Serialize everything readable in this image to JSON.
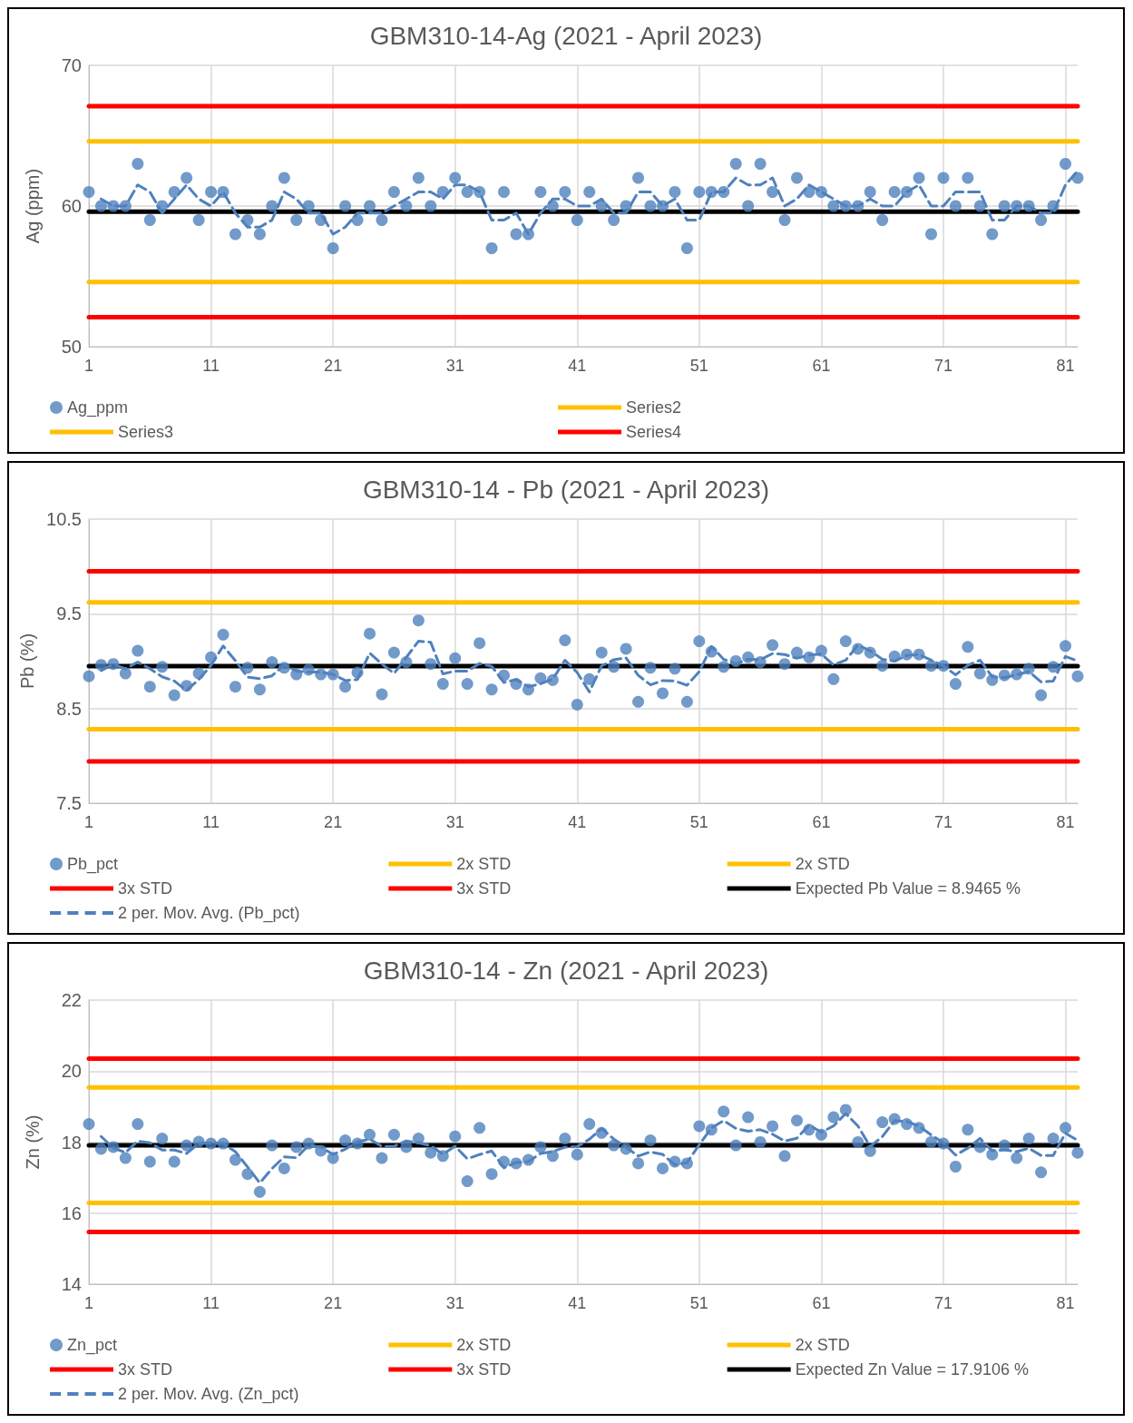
{
  "chart_data": [
    {
      "type": "scatter",
      "title": "GBM310-14-Ag (2021 - April 2023)",
      "ylabel": "Ag (ppm)",
      "xlim": [
        1,
        82
      ],
      "xticks": [
        1,
        11,
        21,
        31,
        41,
        51,
        61,
        71,
        81
      ],
      "ylim": [
        50,
        70
      ],
      "yticks": [
        50,
        60,
        70
      ],
      "grid": true,
      "legend": "bottom",
      "series": [
        {
          "name": "Ag_ppm",
          "color": "#4f81bd",
          "marker": "circle",
          "x": [
            1,
            2,
            3,
            4,
            5,
            6,
            7,
            8,
            9,
            10,
            11,
            12,
            13,
            14,
            15,
            16,
            17,
            18,
            19,
            20,
            21,
            22,
            23,
            24,
            25,
            26,
            27,
            28,
            29,
            30,
            31,
            32,
            33,
            34,
            35,
            36,
            37,
            38,
            39,
            40,
            41,
            42,
            43,
            44,
            45,
            46,
            47,
            48,
            49,
            50,
            51,
            52,
            53,
            54,
            55,
            56,
            57,
            58,
            59,
            60,
            61,
            62,
            63,
            64,
            65,
            66,
            67,
            68,
            69,
            70,
            71,
            72,
            73,
            74,
            75,
            76,
            77,
            78,
            79,
            80,
            81,
            82
          ],
          "values": [
            61,
            60,
            60,
            60,
            63,
            59,
            60,
            61,
            62,
            59,
            61,
            61,
            58,
            59,
            58,
            60,
            62,
            59,
            60,
            59,
            57,
            60,
            59,
            60,
            59,
            61,
            60,
            62,
            60,
            61,
            62,
            61,
            61,
            57,
            61,
            58,
            58,
            61,
            60,
            61,
            59,
            61,
            60,
            59,
            60,
            62,
            60,
            60,
            61,
            57,
            61,
            61,
            61,
            63,
            60,
            63,
            61,
            59,
            62,
            61,
            61,
            60,
            60,
            60,
            61,
            59,
            61,
            61,
            62,
            58,
            62,
            60,
            62,
            60,
            58,
            60,
            60,
            60,
            59,
            60,
            63,
            62
          ]
        },
        {
          "name": "Series2",
          "type": "line",
          "color": "#ffc000",
          "marker": "none",
          "line_style": "solid",
          "x": [
            1,
            82
          ],
          "values": [
            64.6,
            64.6
          ]
        },
        {
          "name": "Series3",
          "type": "line",
          "color": "#ffc000",
          "marker": "none",
          "line_style": "solid",
          "x": [
            1,
            82
          ],
          "values": [
            54.6,
            54.6
          ]
        },
        {
          "name": "Series4",
          "type": "line",
          "color": "#ff0000",
          "marker": "none",
          "line_style": "solid",
          "x": [
            1,
            82
          ],
          "values": [
            67.1,
            67.1
          ]
        },
        {
          "type": "line",
          "color": "#ff0000",
          "marker": "none",
          "line_style": "solid",
          "x": [
            1,
            82
          ],
          "values": [
            52.1,
            52.1
          ]
        },
        {
          "type": "line",
          "color": "#000000",
          "marker": "none",
          "line_style": "solid",
          "x": [
            1,
            82
          ],
          "values": [
            59.6,
            59.6
          ]
        },
        {
          "type": "line",
          "color": "#4f81bd",
          "marker": "none",
          "line_style": "dashed",
          "x": [
            2,
            3,
            4,
            5,
            6,
            7,
            8,
            9,
            10,
            11,
            12,
            13,
            14,
            15,
            16,
            17,
            18,
            19,
            20,
            21,
            22,
            23,
            24,
            25,
            26,
            27,
            28,
            29,
            30,
            31,
            32,
            33,
            34,
            35,
            36,
            37,
            38,
            39,
            40,
            41,
            42,
            43,
            44,
            45,
            46,
            47,
            48,
            49,
            50,
            51,
            52,
            53,
            54,
            55,
            56,
            57,
            58,
            59,
            60,
            61,
            62,
            63,
            64,
            65,
            66,
            67,
            68,
            69,
            70,
            71,
            72,
            73,
            74,
            75,
            76,
            77,
            78,
            79,
            80,
            81,
            82
          ],
          "values": [
            60.5,
            60,
            60,
            61.5,
            61,
            59.5,
            60.5,
            61.5,
            60.5,
            60,
            61,
            59.5,
            58.5,
            58.5,
            59,
            61,
            60.5,
            59.5,
            59.5,
            58,
            58.5,
            59.5,
            59.5,
            59.5,
            60,
            60.5,
            61,
            61,
            60.5,
            61.5,
            61.5,
            61,
            59,
            59,
            59.5,
            58,
            59.5,
            60.5,
            60.5,
            60,
            60,
            60.5,
            59.5,
            59.5,
            61,
            61,
            60,
            60.5,
            59,
            59,
            61,
            61,
            62,
            61.5,
            61.5,
            62,
            60,
            60.5,
            61.5,
            61,
            60.5,
            60,
            60,
            60.5,
            60,
            60,
            61,
            61.5,
            60,
            60,
            61,
            61,
            61,
            59,
            59,
            60,
            60,
            59.5,
            59.5,
            61.5,
            62.5
          ]
        }
      ]
    },
    {
      "type": "scatter",
      "title": "GBM310-14 - Pb (2021 - April 2023)",
      "ylabel": "Pb (%)",
      "xlim": [
        1,
        82
      ],
      "xticks": [
        1,
        11,
        21,
        31,
        41,
        51,
        61,
        71,
        81
      ],
      "ylim": [
        7.5,
        10.5
      ],
      "yticks": [
        7.5,
        8.5,
        9.5,
        10.5
      ],
      "grid": true,
      "legend": "bottom",
      "series": [
        {
          "name": "Pb_pct",
          "color": "#4f81bd",
          "marker": "circle",
          "x": [
            1,
            2,
            3,
            4,
            5,
            6,
            7,
            8,
            9,
            10,
            11,
            12,
            13,
            14,
            15,
            16,
            17,
            18,
            19,
            20,
            21,
            22,
            23,
            24,
            25,
            26,
            27,
            28,
            29,
            30,
            31,
            32,
            33,
            34,
            35,
            36,
            37,
            38,
            39,
            40,
            41,
            42,
            43,
            44,
            45,
            46,
            47,
            48,
            49,
            50,
            51,
            52,
            53,
            54,
            55,
            56,
            57,
            58,
            59,
            60,
            61,
            62,
            63,
            64,
            65,
            66,
            67,
            68,
            69,
            70,
            71,
            72,
            73,
            74,
            75,
            76,
            77,
            78,
            79,
            80,
            81,
            82
          ],
          "values": [
            8.84,
            8.96,
            8.97,
            8.87,
            9.11,
            8.73,
            8.94,
            8.64,
            8.74,
            8.87,
            9.04,
            9.28,
            8.73,
            8.93,
            8.7,
            8.99,
            8.93,
            8.86,
            8.91,
            8.86,
            8.86,
            8.73,
            8.88,
            9.29,
            8.65,
            9.09,
            8.99,
            9.43,
            8.97,
            8.76,
            9.03,
            8.76,
            9.19,
            8.7,
            8.85,
            8.76,
            8.7,
            8.82,
            8.8,
            9.22,
            8.54,
            8.81,
            9.09,
            8.94,
            9.13,
            8.57,
            8.93,
            8.66,
            8.92,
            8.57,
            9.21,
            9.1,
            8.94,
            9.0,
            9.04,
            8.99,
            9.17,
            8.97,
            9.09,
            9.04,
            9.11,
            8.81,
            9.21,
            9.13,
            9.09,
            8.95,
            9.05,
            9.07,
            9.07,
            8.95,
            8.95,
            8.76,
            9.15,
            8.87,
            8.8,
            8.85,
            8.86,
            8.92,
            8.64,
            8.94,
            9.16,
            8.84
          ]
        },
        {
          "name": "2x STD",
          "type": "line",
          "color": "#ffc000",
          "marker": "none",
          "line_style": "solid",
          "x": [
            1,
            82
          ],
          "values": [
            9.62,
            9.62
          ]
        },
        {
          "name": "2x STD",
          "type": "line",
          "color": "#ffc000",
          "marker": "none",
          "line_style": "solid",
          "x": [
            1,
            82
          ],
          "values": [
            8.28,
            8.28
          ]
        },
        {
          "name": "3x STD",
          "type": "line",
          "color": "#ff0000",
          "marker": "none",
          "line_style": "solid",
          "x": [
            1,
            82
          ],
          "values": [
            9.95,
            9.95
          ]
        },
        {
          "name": "3x STD",
          "type": "line",
          "color": "#ff0000",
          "marker": "none",
          "line_style": "solid",
          "x": [
            1,
            82
          ],
          "values": [
            7.94,
            7.94
          ]
        },
        {
          "name": "Expected Pb Value = 8.9465 %",
          "type": "line",
          "color": "#000000",
          "marker": "none",
          "line_style": "solid",
          "x": [
            1,
            82
          ],
          "values": [
            8.9465,
            8.9465
          ]
        },
        {
          "name": "2 per. Mov. Avg. (Pb_pct)",
          "type": "line",
          "color": "#4f81bd",
          "marker": "none",
          "line_style": "dashed",
          "x": [
            2,
            3,
            4,
            5,
            6,
            7,
            8,
            9,
            10,
            11,
            12,
            13,
            14,
            15,
            16,
            17,
            18,
            19,
            20,
            21,
            22,
            23,
            24,
            25,
            26,
            27,
            28,
            29,
            30,
            31,
            32,
            33,
            34,
            35,
            36,
            37,
            38,
            39,
            40,
            41,
            42,
            43,
            44,
            45,
            46,
            47,
            48,
            49,
            50,
            51,
            52,
            53,
            54,
            55,
            56,
            57,
            58,
            59,
            60,
            61,
            62,
            63,
            64,
            65,
            66,
            67,
            68,
            69,
            70,
            71,
            72,
            73,
            74,
            75,
            76,
            77,
            78,
            79,
            80,
            81,
            82
          ],
          "values": [
            8.9,
            8.965,
            8.92,
            8.99,
            8.92,
            8.835,
            8.79,
            8.69,
            8.805,
            8.955,
            9.16,
            9.005,
            8.83,
            8.815,
            8.845,
            8.96,
            8.895,
            8.885,
            8.885,
            8.86,
            8.795,
            8.805,
            9.085,
            8.97,
            8.87,
            9.04,
            9.21,
            9.2,
            8.865,
            8.895,
            8.895,
            8.975,
            8.945,
            8.775,
            8.805,
            8.73,
            8.76,
            8.81,
            9.01,
            8.88,
            8.675,
            8.95,
            9.015,
            9.035,
            8.85,
            8.75,
            8.795,
            8.79,
            8.745,
            8.89,
            9.155,
            9.02,
            8.97,
            9.02,
            9.015,
            9.08,
            9.07,
            9.03,
            9.065,
            9.075,
            8.96,
            9.01,
            9.17,
            9.11,
            9.02,
            9,
            9.06,
            9.07,
            9.01,
            8.95,
            8.855,
            8.955,
            9.01,
            8.835,
            8.825,
            8.855,
            8.89,
            8.78,
            8.79,
            9.05,
            9.0
          ]
        }
      ]
    },
    {
      "type": "scatter",
      "title": "GBM310-14 - Zn (2021 - April 2023)",
      "ylabel": "Zn (%)",
      "xlim": [
        1,
        82
      ],
      "xticks": [
        1,
        11,
        21,
        31,
        41,
        51,
        61,
        71,
        81
      ],
      "ylim": [
        14,
        22
      ],
      "yticks": [
        14,
        16,
        18,
        20,
        22
      ],
      "grid": true,
      "legend": "bottom",
      "series": [
        {
          "name": "Zn_pct",
          "color": "#4f81bd",
          "marker": "circle",
          "x": [
            1,
            2,
            3,
            4,
            5,
            6,
            7,
            8,
            9,
            10,
            11,
            12,
            13,
            14,
            15,
            16,
            17,
            18,
            19,
            20,
            21,
            22,
            23,
            24,
            25,
            26,
            27,
            28,
            29,
            30,
            31,
            32,
            33,
            34,
            35,
            36,
            37,
            38,
            39,
            40,
            41,
            42,
            43,
            44,
            45,
            46,
            47,
            48,
            49,
            50,
            51,
            52,
            53,
            54,
            55,
            56,
            57,
            58,
            59,
            60,
            61,
            62,
            63,
            64,
            65,
            66,
            67,
            68,
            69,
            70,
            71,
            72,
            73,
            74,
            75,
            76,
            77,
            78,
            79,
            80,
            81,
            82
          ],
          "values": [
            18.51,
            17.81,
            17.86,
            17.55,
            18.51,
            17.45,
            18.1,
            17.45,
            17.91,
            18.01,
            17.96,
            17.96,
            17.5,
            17.1,
            16.6,
            17.91,
            17.26,
            17.86,
            17.96,
            17.76,
            17.55,
            18.05,
            17.96,
            18.21,
            17.55,
            18.21,
            17.86,
            18.1,
            17.7,
            17.61,
            18.16,
            16.9,
            18.4,
            17.1,
            17.45,
            17.4,
            17.5,
            17.86,
            17.61,
            18.1,
            17.65,
            18.51,
            18.26,
            17.91,
            17.81,
            17.4,
            18.05,
            17.26,
            17.45,
            17.4,
            18.45,
            18.35,
            18.86,
            17.91,
            18.7,
            18.0,
            18.45,
            17.61,
            18.61,
            18.35,
            18.21,
            18.7,
            18.91,
            18.0,
            17.75,
            18.56,
            18.65,
            18.51,
            18.4,
            18.0,
            17.96,
            17.31,
            18.35,
            17.86,
            17.65,
            17.91,
            17.55,
            18.1,
            17.15,
            18.1,
            18.4,
            17.7
          ]
        },
        {
          "name": "2x STD",
          "type": "line",
          "color": "#ffc000",
          "marker": "none",
          "line_style": "solid",
          "x": [
            1,
            82
          ],
          "values": [
            19.54,
            19.54
          ]
        },
        {
          "name": "2x STD",
          "type": "line",
          "color": "#ffc000",
          "marker": "none",
          "line_style": "solid",
          "x": [
            1,
            82
          ],
          "values": [
            16.29,
            16.29
          ]
        },
        {
          "name": "3x STD",
          "type": "line",
          "color": "#ff0000",
          "marker": "none",
          "line_style": "solid",
          "x": [
            1,
            82
          ],
          "values": [
            20.35,
            20.35
          ]
        },
        {
          "name": "3x STD",
          "type": "line",
          "color": "#ff0000",
          "marker": "none",
          "line_style": "solid",
          "x": [
            1,
            82
          ],
          "values": [
            15.47,
            15.47
          ]
        },
        {
          "name": "Expected Zn Value = 17.9106 %",
          "type": "line",
          "color": "#000000",
          "marker": "none",
          "line_style": "solid",
          "x": [
            1,
            82
          ],
          "values": [
            17.9106,
            17.9106
          ]
        },
        {
          "name": "2 per. Mov. Avg. (Zn_pct)",
          "type": "line",
          "color": "#4f81bd",
          "marker": "none",
          "line_style": "dashed",
          "x": [
            2,
            3,
            4,
            5,
            6,
            7,
            8,
            9,
            10,
            11,
            12,
            13,
            14,
            15,
            16,
            17,
            18,
            19,
            20,
            21,
            22,
            23,
            24,
            25,
            26,
            27,
            28,
            29,
            30,
            31,
            32,
            33,
            34,
            35,
            36,
            37,
            38,
            39,
            40,
            41,
            42,
            43,
            44,
            45,
            46,
            47,
            48,
            49,
            50,
            51,
            52,
            53,
            54,
            55,
            56,
            57,
            58,
            59,
            60,
            61,
            62,
            63,
            64,
            65,
            66,
            67,
            68,
            69,
            70,
            71,
            72,
            73,
            74,
            75,
            76,
            77,
            78,
            79,
            80,
            81,
            82
          ],
          "values": [
            18.16,
            17.835,
            17.705,
            18.03,
            17.98,
            17.775,
            17.775,
            17.68,
            17.96,
            17.985,
            17.96,
            17.73,
            17.3,
            16.85,
            17.255,
            17.585,
            17.56,
            17.91,
            17.86,
            17.655,
            17.8,
            18.005,
            18.085,
            17.88,
            17.88,
            18.035,
            17.98,
            17.9,
            17.655,
            17.885,
            17.53,
            17.65,
            17.75,
            17.275,
            17.425,
            17.45,
            17.68,
            17.735,
            17.855,
            17.875,
            18.08,
            18.385,
            18.085,
            17.86,
            17.605,
            17.725,
            17.655,
            17.355,
            17.425,
            17.925,
            18.4,
            18.605,
            18.385,
            18.305,
            18.35,
            18.225,
            18.03,
            18.11,
            18.48,
            18.28,
            18.455,
            18.805,
            18.455,
            17.875,
            18.155,
            18.605,
            18.58,
            18.455,
            18.2,
            17.98,
            17.635,
            17.83,
            18.105,
            17.755,
            17.78,
            17.73,
            17.825,
            17.625,
            17.625,
            18.25,
            18.05
          ]
        }
      ]
    }
  ]
}
